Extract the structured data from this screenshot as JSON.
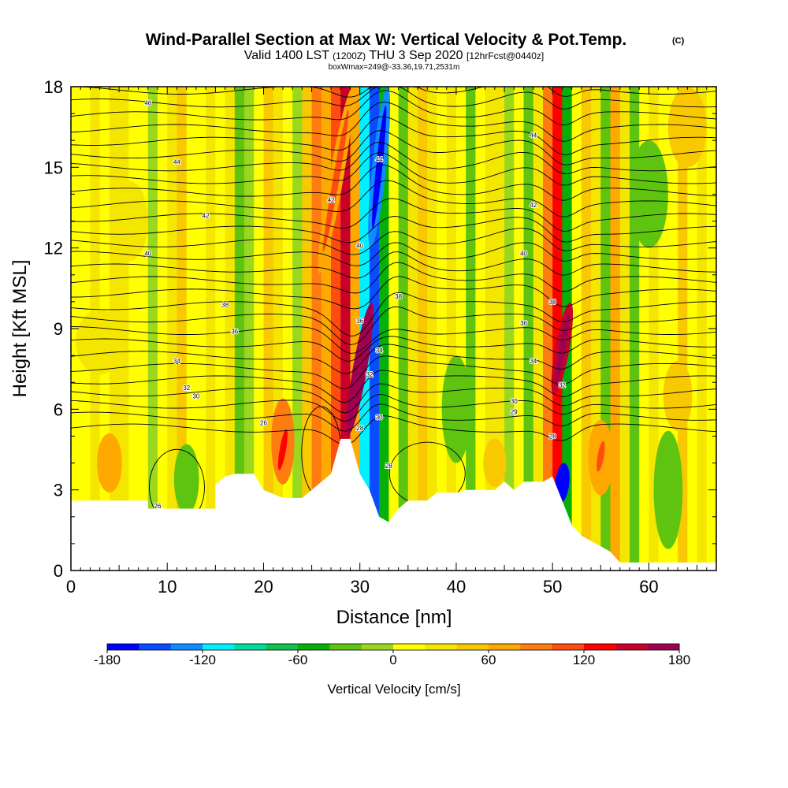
{
  "chart_data": {
    "type": "heatmap",
    "title": "Wind-Parallel Section at Max W: Vertical Velocity & Pot.Temp.",
    "title_mark": "(C)",
    "subtitle": {
      "valid": "Valid 1400 LST",
      "utc": "(1200Z)",
      "date": "THU 3 Sep 2020",
      "fcst": "[12hrFcst@0440z]"
    },
    "info_line": "boxWmax=249@-33.36,19.71,2531m",
    "xlabel": "Distance [nm]",
    "ylabel": "Height [Kft MSL]",
    "xlim": [
      0,
      67
    ],
    "ylim": [
      0,
      18
    ],
    "x_ticks": [
      0,
      10,
      20,
      30,
      40,
      50,
      60
    ],
    "x_tick_labels": [
      "0",
      "10",
      "20",
      "30",
      "40",
      "50",
      "60"
    ],
    "y_ticks": [
      0,
      3,
      6,
      9,
      12,
      15,
      18
    ],
    "y_tick_labels": [
      "0",
      "3",
      "6",
      "9",
      "12",
      "15",
      "18"
    ],
    "colorbar": {
      "label": "Vertical Velocity [cm/s]",
      "min": -180,
      "max": 180,
      "step": 20,
      "tick_values": [
        -180,
        -120,
        -60,
        0,
        60,
        120,
        180
      ],
      "tick_labels": [
        "-180",
        "-120",
        "-60",
        "0",
        "60",
        "120",
        "180"
      ],
      "colors": [
        "#0000ff",
        "#0a4cff",
        "#0f8cff",
        "#00f0ff",
        "#00dc9c",
        "#10c050",
        "#06b00a",
        "#5ec40f",
        "#9ad81e",
        "#ffff00",
        "#f5e600",
        "#f8c800",
        "#ffa800",
        "#ff7c10",
        "#ff4c10",
        "#ff0000",
        "#c8002a",
        "#a00050"
      ]
    },
    "terrain": [
      [
        0,
        2.6
      ],
      [
        8,
        2.6
      ],
      [
        8,
        2.3
      ],
      [
        15,
        2.3
      ],
      [
        15,
        3.2
      ],
      [
        16,
        3.5
      ],
      [
        17,
        3.6
      ],
      [
        19,
        3.6
      ],
      [
        20,
        3.0
      ],
      [
        22,
        2.7
      ],
      [
        24,
        2.7
      ],
      [
        25,
        3.0
      ],
      [
        26,
        3.3
      ],
      [
        27,
        3.6
      ],
      [
        28,
        4.9
      ],
      [
        29,
        4.9
      ],
      [
        30,
        3.6
      ],
      [
        31,
        3.0
      ],
      [
        32,
        2.0
      ],
      [
        33,
        1.8
      ],
      [
        34,
        2.3
      ],
      [
        35,
        2.6
      ],
      [
        37,
        2.6
      ],
      [
        38,
        2.9
      ],
      [
        40,
        2.9
      ],
      [
        41,
        3.0
      ],
      [
        44,
        3.0
      ],
      [
        45,
        3.3
      ],
      [
        46,
        3.0
      ],
      [
        47,
        3.3
      ],
      [
        49,
        3.3
      ],
      [
        50,
        3.5
      ],
      [
        51,
        2.6
      ],
      [
        52,
        1.7
      ],
      [
        53,
        1.3
      ],
      [
        55,
        0.9
      ],
      [
        56,
        0.7
      ],
      [
        57,
        0.3
      ],
      [
        60,
        0.3
      ],
      [
        67,
        0.3
      ]
    ],
    "updrafts": [
      {
        "x": 30.0,
        "ymin": 5,
        "ymax": 10,
        "w": 170
      },
      {
        "x": 51.0,
        "ymin": 6.5,
        "ymax": 10,
        "w": 140
      },
      {
        "x": 27.5,
        "ymin": 11,
        "ymax": 18,
        "w": 70
      },
      {
        "x": 22.0,
        "ymin": 3.5,
        "ymax": 5.5,
        "w": 90
      },
      {
        "x": 55.0,
        "ymin": 3.5,
        "ymax": 5,
        "w": 60
      }
    ],
    "downdrafts": [
      {
        "x": 32.0,
        "ymin": 12,
        "ymax": 18,
        "w": -140
      },
      {
        "x": 51.0,
        "ymin": 2.5,
        "ymax": 4,
        "w": -180
      }
    ],
    "theta_labels": [
      {
        "x": 8,
        "y": 17.4,
        "label": "46"
      },
      {
        "x": 11,
        "y": 15.2,
        "label": "44"
      },
      {
        "x": 14,
        "y": 13.2,
        "label": "42"
      },
      {
        "x": 8,
        "y": 11.8,
        "label": "40"
      },
      {
        "x": 16,
        "y": 9.9,
        "label": "38"
      },
      {
        "x": 17,
        "y": 8.9,
        "label": "36"
      },
      {
        "x": 11,
        "y": 7.8,
        "label": "34"
      },
      {
        "x": 12,
        "y": 6.8,
        "label": "32"
      },
      {
        "x": 13,
        "y": 6.5,
        "label": "30"
      },
      {
        "x": 20,
        "y": 5.5,
        "label": "26"
      },
      {
        "x": 9,
        "y": 2.4,
        "label": "26"
      },
      {
        "x": 32,
        "y": 15.3,
        "label": "44"
      },
      {
        "x": 27,
        "y": 13.8,
        "label": "42"
      },
      {
        "x": 30,
        "y": 12.1,
        "label": "40"
      },
      {
        "x": 34,
        "y": 10.2,
        "label": "38"
      },
      {
        "x": 30,
        "y": 9.3,
        "label": "36"
      },
      {
        "x": 32,
        "y": 8.2,
        "label": "34"
      },
      {
        "x": 31,
        "y": 7.3,
        "label": "32"
      },
      {
        "x": 32,
        "y": 5.7,
        "label": "30"
      },
      {
        "x": 30,
        "y": 5.3,
        "label": "28"
      },
      {
        "x": 33,
        "y": 3.9,
        "label": "28"
      },
      {
        "x": 48,
        "y": 16.2,
        "label": "44"
      },
      {
        "x": 48,
        "y": 13.6,
        "label": "42"
      },
      {
        "x": 47,
        "y": 11.8,
        "label": "40"
      },
      {
        "x": 50,
        "y": 10.0,
        "label": "38"
      },
      {
        "x": 47,
        "y": 9.2,
        "label": "36"
      },
      {
        "x": 48,
        "y": 7.8,
        "label": "34"
      },
      {
        "x": 51,
        "y": 6.9,
        "label": "32"
      },
      {
        "x": 46,
        "y": 6.3,
        "label": "30"
      },
      {
        "x": 46,
        "y": 5.9,
        "label": "29"
      },
      {
        "x": 50,
        "y": 5.0,
        "label": "28"
      }
    ]
  }
}
